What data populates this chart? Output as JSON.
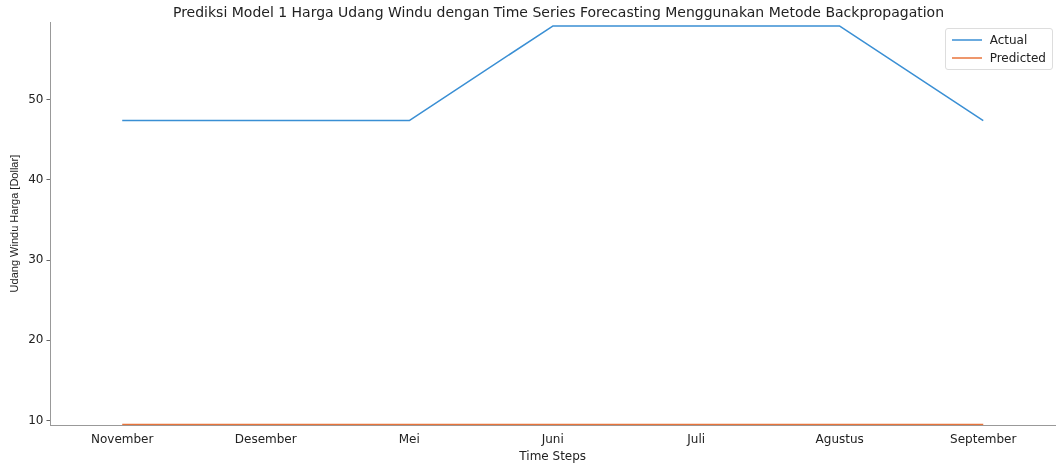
{
  "chart_data": {
    "type": "line",
    "title": "Prediksi Model 1 Harga Udang Windu dengan Time Series Forecasting Menggunakan Metode Backpropagation",
    "xlabel": "Time Steps",
    "ylabel": "Udang Windu Harga [Dollar]",
    "categories": [
      "November",
      "Desember",
      "Mei",
      "Juni",
      "Juli",
      "Agustus",
      "September"
    ],
    "series": [
      {
        "name": "Actual",
        "color": "#3a8fd4",
        "values": [
          47.4,
          47.4,
          47.4,
          59.2,
          59.2,
          59.2,
          47.4
        ]
      },
      {
        "name": "Predicted",
        "color": "#e8743b",
        "values": [
          9.5,
          9.5,
          9.5,
          9.5,
          9.5,
          9.5,
          9.5
        ]
      }
    ],
    "ylim": [
      9.4,
      59.7
    ],
    "yticks": [
      10,
      20,
      30,
      40,
      50
    ],
    "grid": false,
    "legend": "top right",
    "marker": "none",
    "line_style": "solid"
  }
}
